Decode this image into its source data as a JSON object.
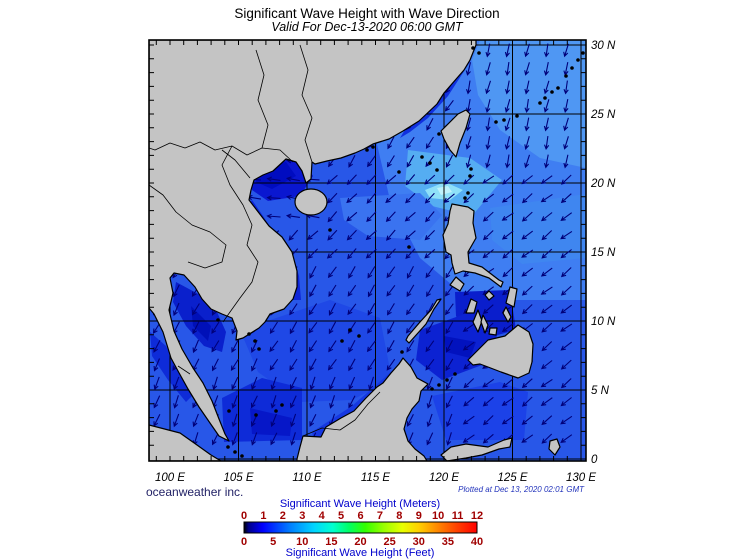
{
  "title": "Significant Wave Height with Wave Direction",
  "subtitle": "Valid For Dec-13-2020 06:00 GMT",
  "credit": "oceanweather inc.",
  "plotted_note": "Plotted at Dec 13, 2020 02:01 GMT",
  "axes": {
    "lat_labels": [
      "30 N",
      "25 N",
      "20 N",
      "15 N",
      "10 N",
      "5 N",
      "0"
    ],
    "lon_labels": [
      "100 E",
      "105 E",
      "110 E",
      "115 E",
      "120 E",
      "125 E",
      "130 E"
    ]
  },
  "legend": {
    "meters_title": "Significant Wave Height (Meters)",
    "feet_title": "Significant Wave Height (Feet)",
    "meters_ticks": [
      "0",
      "1",
      "2",
      "3",
      "4",
      "5",
      "6",
      "7",
      "8",
      "9",
      "10",
      "11",
      "12"
    ],
    "feet_ticks": [
      "0",
      "5",
      "10",
      "15",
      "20",
      "25",
      "30",
      "35",
      "40"
    ]
  },
  "colors": {
    "land": "#C4C4C4",
    "coastline": "#000000",
    "sea_base": "#2857E8",
    "arrow": "#00007A",
    "grid": "#000000",
    "scale_title_text": "#0000CC",
    "scale_tick_text": "#A00000",
    "credit_text": "#222266",
    "plotted_text": "#2233BB"
  }
}
